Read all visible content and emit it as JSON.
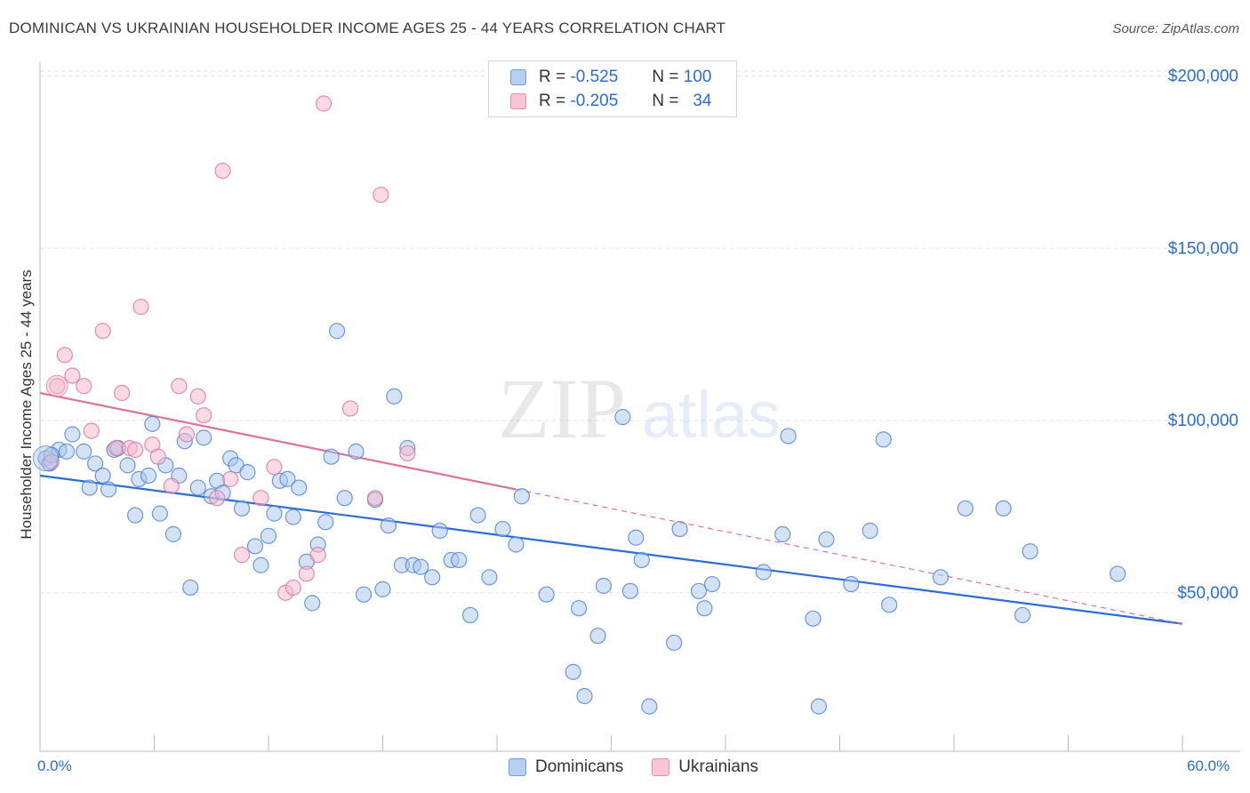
{
  "title": "DOMINICAN VS UKRAINIAN HOUSEHOLDER INCOME AGES 25 - 44 YEARS CORRELATION CHART",
  "source": "Source: ZipAtlas.com",
  "watermark": {
    "zip": "ZIP",
    "atlas": "atlas"
  },
  "colors": {
    "blue": "#4a7fd4",
    "blue_fill": "#a9c6ee",
    "pink": "#e0719a",
    "pink_fill": "#f5b8cc",
    "axis_text": "#2a6dd4",
    "grid": "#e2e2e2"
  },
  "legend": {
    "rows": [
      {
        "r_label": "R =",
        "r_value": "-0.525",
        "n_label": "N =",
        "n_value": "100"
      },
      {
        "r_label": "R =",
        "r_value": "-0.205",
        "n_label": "N =",
        "n_value": "34"
      }
    ]
  },
  "bottom_legend": {
    "items": [
      "Dominicans",
      "Ukrainians"
    ]
  },
  "chart_data": {
    "type": "scatter",
    "title": "DOMINICAN VS UKRAINIAN HOUSEHOLDER INCOME AGES 25 - 44 YEARS CORRELATION CHART",
    "xlabel": "",
    "ylabel": "Householder Income Ages 25 - 44 years",
    "x_tick_labels": [
      "0.0%",
      "60.0%"
    ],
    "y_tick_labels": [
      "$50,000",
      "$100,000",
      "$150,000",
      "$200,000"
    ],
    "y_ticks": [
      50000,
      100000,
      150000,
      200000
    ],
    "xlim": [
      0,
      60
    ],
    "ylim": [
      4000,
      204000
    ],
    "grid": true,
    "legend_position": "top-center",
    "series": [
      {
        "name": "Dominicans",
        "color": "#4a7fd4",
        "trend": {
          "x": [
            0,
            60
          ],
          "y": [
            84000,
            41000
          ]
        },
        "points": [
          [
            0.3,
            89000
          ],
          [
            0.5,
            87500
          ],
          [
            1.0,
            91500
          ],
          [
            1.4,
            91000
          ],
          [
            1.7,
            96000
          ],
          [
            2.3,
            91000
          ],
          [
            2.6,
            80500
          ],
          [
            2.9,
            87500
          ],
          [
            3.3,
            84000
          ],
          [
            3.6,
            80000
          ],
          [
            3.9,
            91500
          ],
          [
            4.1,
            92000
          ],
          [
            4.6,
            87000
          ],
          [
            5.0,
            72500
          ],
          [
            5.2,
            83000
          ],
          [
            5.7,
            84000
          ],
          [
            5.9,
            99000
          ],
          [
            6.3,
            73000
          ],
          [
            6.6,
            87000
          ],
          [
            7.0,
            67000
          ],
          [
            7.3,
            84000
          ],
          [
            7.6,
            94000
          ],
          [
            7.9,
            51500
          ],
          [
            8.3,
            80500
          ],
          [
            8.6,
            95000
          ],
          [
            9.0,
            78000
          ],
          [
            9.3,
            82500
          ],
          [
            9.6,
            79000
          ],
          [
            10.0,
            89000
          ],
          [
            10.3,
            87000
          ],
          [
            10.6,
            74500
          ],
          [
            10.9,
            85000
          ],
          [
            11.3,
            63500
          ],
          [
            11.6,
            58000
          ],
          [
            12.0,
            66500
          ],
          [
            12.3,
            73000
          ],
          [
            12.6,
            82500
          ],
          [
            13.0,
            83000
          ],
          [
            13.3,
            72000
          ],
          [
            13.6,
            80500
          ],
          [
            14.0,
            59000
          ],
          [
            14.3,
            47000
          ],
          [
            14.6,
            64000
          ],
          [
            15.0,
            70500
          ],
          [
            15.3,
            89500
          ],
          [
            15.6,
            126000
          ],
          [
            16.0,
            77500
          ],
          [
            16.6,
            91000
          ],
          [
            17.0,
            49500
          ],
          [
            17.6,
            77000
          ],
          [
            18.0,
            51000
          ],
          [
            18.3,
            69500
          ],
          [
            18.6,
            107000
          ],
          [
            19.0,
            58000
          ],
          [
            19.3,
            92000
          ],
          [
            19.6,
            58000
          ],
          [
            20.0,
            57500
          ],
          [
            20.6,
            54500
          ],
          [
            21.0,
            68000
          ],
          [
            21.6,
            59500
          ],
          [
            22.0,
            59500
          ],
          [
            22.6,
            43500
          ],
          [
            23.0,
            72500
          ],
          [
            23.6,
            54500
          ],
          [
            24.3,
            68500
          ],
          [
            25.0,
            64000
          ],
          [
            25.3,
            78000
          ],
          [
            26.6,
            49500
          ],
          [
            28.0,
            27000
          ],
          [
            28.3,
            45500
          ],
          [
            28.6,
            20000
          ],
          [
            29.3,
            37500
          ],
          [
            29.6,
            52000
          ],
          [
            30.6,
            101000
          ],
          [
            31.0,
            50500
          ],
          [
            31.3,
            66000
          ],
          [
            31.6,
            59500
          ],
          [
            32.0,
            17000
          ],
          [
            33.3,
            35500
          ],
          [
            33.6,
            68500
          ],
          [
            34.6,
            50500
          ],
          [
            34.9,
            45500
          ],
          [
            35.3,
            52500
          ],
          [
            38.0,
            56000
          ],
          [
            39.0,
            67000
          ],
          [
            39.3,
            95500
          ],
          [
            40.6,
            42500
          ],
          [
            40.9,
            17000
          ],
          [
            41.3,
            65500
          ],
          [
            42.6,
            52500
          ],
          [
            43.6,
            68000
          ],
          [
            44.3,
            94500
          ],
          [
            44.6,
            46500
          ],
          [
            47.3,
            54500
          ],
          [
            48.6,
            74500
          ],
          [
            50.6,
            74500
          ],
          [
            51.6,
            43500
          ],
          [
            52.0,
            62000
          ],
          [
            56.6,
            55500
          ],
          [
            0.6,
            90000
          ]
        ]
      },
      {
        "name": "Ukrainians",
        "color": "#e0719a",
        "trend": {
          "x": [
            0,
            25
          ],
          "y": [
            108000,
            80000
          ]
        },
        "trend_dashed": {
          "x": [
            25,
            60
          ],
          "y": [
            80000,
            41000
          ]
        },
        "points": [
          [
            0.6,
            88000
          ],
          [
            0.9,
            110000
          ],
          [
            1.3,
            119000
          ],
          [
            1.7,
            113000
          ],
          [
            2.3,
            110000
          ],
          [
            2.7,
            97000
          ],
          [
            3.3,
            126000
          ],
          [
            4.0,
            92000
          ],
          [
            4.3,
            108000
          ],
          [
            4.7,
            92000
          ],
          [
            5.0,
            91500
          ],
          [
            5.3,
            133000
          ],
          [
            5.9,
            93000
          ],
          [
            6.2,
            89500
          ],
          [
            6.9,
            81000
          ],
          [
            7.3,
            110000
          ],
          [
            7.7,
            96000
          ],
          [
            8.3,
            107000
          ],
          [
            8.6,
            101500
          ],
          [
            9.3,
            77500
          ],
          [
            9.6,
            172500
          ],
          [
            10.0,
            83000
          ],
          [
            10.6,
            61000
          ],
          [
            11.6,
            77500
          ],
          [
            12.3,
            86500
          ],
          [
            12.9,
            50000
          ],
          [
            13.3,
            51500
          ],
          [
            14.0,
            55500
          ],
          [
            14.6,
            61000
          ],
          [
            14.9,
            192000
          ],
          [
            16.3,
            103500
          ],
          [
            17.6,
            77500
          ],
          [
            17.9,
            165500
          ],
          [
            19.3,
            90500
          ]
        ]
      }
    ]
  }
}
